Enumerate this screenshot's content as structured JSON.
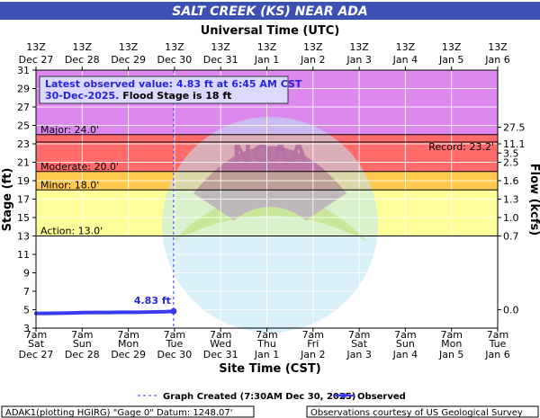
{
  "chart_data": {
    "type": "line",
    "title": "SALT CREEK (KS) NEAR ADA",
    "top_axis_title": "Universal Time (UTC)",
    "bottom_axis_title": "Site Time (CST)",
    "ylabel": "Stage (ft)",
    "y2label": "Flow (kcfs)",
    "ylim": [
      3,
      31
    ],
    "yticks": [
      3,
      5,
      7,
      9,
      11,
      13,
      15,
      17,
      19,
      21,
      23,
      25,
      27,
      29,
      31
    ],
    "x_range_days": [
      "Dec 27",
      "Jan 6"
    ],
    "top_ticks": [
      {
        "line1": "13Z",
        "line2": "Dec 27"
      },
      {
        "line1": "13Z",
        "line2": "Dec 28"
      },
      {
        "line1": "13Z",
        "line2": "Dec 29"
      },
      {
        "line1": "13Z",
        "line2": "Dec 30"
      },
      {
        "line1": "13Z",
        "line2": "Dec 31"
      },
      {
        "line1": "13Z",
        "line2": "Jan 1"
      },
      {
        "line1": "13Z",
        "line2": "Jan 2"
      },
      {
        "line1": "13Z",
        "line2": "Jan 3"
      },
      {
        "line1": "13Z",
        "line2": "Jan 4"
      },
      {
        "line1": "13Z",
        "line2": "Jan 5"
      },
      {
        "line1": "13Z",
        "line2": "Jan 6"
      }
    ],
    "bottom_ticks": [
      {
        "line1": "7am",
        "line2": "Sat",
        "line3": "Dec 27"
      },
      {
        "line1": "7am",
        "line2": "Sun",
        "line3": "Dec 28"
      },
      {
        "line1": "7am",
        "line2": "Mon",
        "line3": "Dec 29"
      },
      {
        "line1": "7am",
        "line2": "Tue",
        "line3": "Dec 30"
      },
      {
        "line1": "7am",
        "line2": "Wed",
        "line3": "Dec 31"
      },
      {
        "line1": "7am",
        "line2": "Thu",
        "line3": "Jan 1"
      },
      {
        "line1": "7am",
        "line2": "Fri",
        "line3": "Jan 2"
      },
      {
        "line1": "7am",
        "line2": "Sat",
        "line3": "Jan 3"
      },
      {
        "line1": "7am",
        "line2": "Sun",
        "line3": "Jan 4"
      },
      {
        "line1": "7am",
        "line2": "Mon",
        "line3": "Jan 5"
      },
      {
        "line1": "7am",
        "line2": "Tue",
        "line3": "Jan 6"
      }
    ],
    "flow_ticks": [
      {
        "stage": 5.0,
        "label": "0.0"
      },
      {
        "stage": 13.0,
        "label": "0.7"
      },
      {
        "stage": 15.0,
        "label": "1.0"
      },
      {
        "stage": 17.0,
        "label": "1.3"
      },
      {
        "stage": 19.0,
        "label": "1.6"
      },
      {
        "stage": 21.0,
        "label": "2.5"
      },
      {
        "stage": 23.0,
        "label": "11.1"
      },
      {
        "stage": 22.0,
        "label": "3.5"
      },
      {
        "stage": 24.8,
        "label": "27.5"
      }
    ],
    "flood_bands": [
      {
        "name": "action",
        "from": 13,
        "to": 18,
        "color": "#ffff99"
      },
      {
        "name": "minor",
        "from": 18,
        "to": 20,
        "color": "#ffc94d"
      },
      {
        "name": "moderate",
        "from": 20,
        "to": 24,
        "color": "#ff6b6b"
      },
      {
        "name": "major",
        "from": 24,
        "to": 31,
        "color": "#dd88ee"
      }
    ],
    "stage_lines": [
      {
        "label": "Action: 13.0'",
        "value": 13.0
      },
      {
        "label": "Minor: 18.0'",
        "value": 18.0
      },
      {
        "label": "Moderate: 20.0'",
        "value": 20.0
      },
      {
        "label": "Major: 24.0'",
        "value": 24.0
      }
    ],
    "record": {
      "label": "Record: 23.2'",
      "value": 23.2
    },
    "observed": {
      "name": "Observed",
      "x": [
        -0.29,
        0.2,
        0.5,
        0.8,
        1.0,
        1.3,
        1.6,
        1.9,
        2.2,
        2.5,
        2.8,
        2.98
      ],
      "y": [
        4.6,
        4.6,
        4.62,
        4.65,
        4.68,
        4.7,
        4.7,
        4.72,
        4.72,
        4.75,
        4.78,
        4.83
      ]
    },
    "last_value_label": "4.83 ft",
    "graph_created_x": 2.98,
    "annotation": {
      "line1": "Latest observed value: 4.83 ft at 6:45 AM CST",
      "line2_blue": "30-Dec-2025.",
      "line2_black": " Flood Stage is 18 ft"
    },
    "legend": {
      "created": "Graph Created (7:30AM Dec 30, 2025)",
      "observed": "Observed"
    },
    "footer_left": "ADAK1(plotting HGIRG) \"Gage 0\" Datum: 1248.07'",
    "footer_right": "Observations courtesy of US Geological Survey",
    "watermark": "NATIONAL OCEANIC AND ATMOSPHERIC ADMINISTRATION · U.S. DEPARTMENT OF COMMERCE · NOAA"
  }
}
